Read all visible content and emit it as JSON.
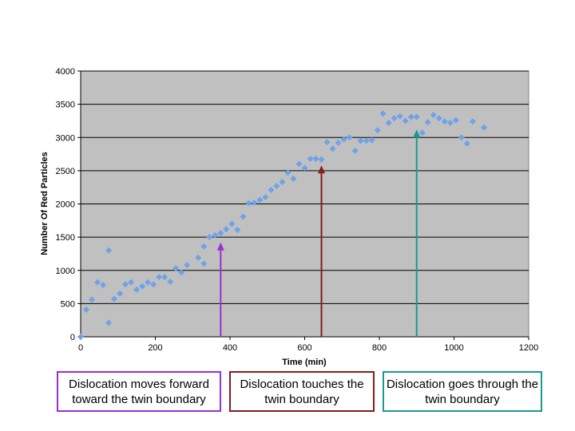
{
  "chart_data": {
    "type": "scatter",
    "title": "",
    "xlabel": "Time (min)",
    "ylabel": "Number Of Red  Particles",
    "xlim": [
      0,
      1200
    ],
    "ylim": [
      0,
      4000
    ],
    "xticks": [
      0,
      200,
      400,
      600,
      800,
      1000,
      1200
    ],
    "yticks": [
      0,
      500,
      1000,
      1500,
      2000,
      2500,
      3000,
      3500,
      4000
    ],
    "grid": "horizontal",
    "plot_background": "#c0c0c0",
    "marker_color": "#6fa2e8",
    "points": [
      [
        0,
        0
      ],
      [
        15,
        410
      ],
      [
        30,
        560
      ],
      [
        45,
        820
      ],
      [
        60,
        780
      ],
      [
        75,
        1300
      ],
      [
        75,
        210
      ],
      [
        90,
        570
      ],
      [
        105,
        650
      ],
      [
        120,
        790
      ],
      [
        135,
        820
      ],
      [
        150,
        710
      ],
      [
        165,
        760
      ],
      [
        180,
        820
      ],
      [
        195,
        790
      ],
      [
        210,
        900
      ],
      [
        225,
        900
      ],
      [
        240,
        830
      ],
      [
        255,
        1030
      ],
      [
        270,
        970
      ],
      [
        285,
        1080
      ],
      [
        315,
        1190
      ],
      [
        330,
        1100
      ],
      [
        330,
        1360
      ],
      [
        345,
        1500
      ],
      [
        360,
        1530
      ],
      [
        375,
        1560
      ],
      [
        390,
        1620
      ],
      [
        405,
        1700
      ],
      [
        420,
        1610
      ],
      [
        435,
        1810
      ],
      [
        450,
        2010
      ],
      [
        465,
        2020
      ],
      [
        480,
        2060
      ],
      [
        495,
        2100
      ],
      [
        510,
        2210
      ],
      [
        525,
        2270
      ],
      [
        540,
        2330
      ],
      [
        555,
        2470
      ],
      [
        570,
        2380
      ],
      [
        585,
        2600
      ],
      [
        600,
        2540
      ],
      [
        615,
        2680
      ],
      [
        630,
        2680
      ],
      [
        645,
        2670
      ],
      [
        660,
        2930
      ],
      [
        675,
        2830
      ],
      [
        690,
        2920
      ],
      [
        705,
        2970
      ],
      [
        720,
        3000
      ],
      [
        735,
        2800
      ],
      [
        750,
        2950
      ],
      [
        765,
        2950
      ],
      [
        780,
        2960
      ],
      [
        795,
        3110
      ],
      [
        810,
        3360
      ],
      [
        825,
        3220
      ],
      [
        840,
        3290
      ],
      [
        855,
        3320
      ],
      [
        870,
        3250
      ],
      [
        885,
        3310
      ],
      [
        900,
        3310
      ],
      [
        915,
        3070
      ],
      [
        930,
        3230
      ],
      [
        945,
        3340
      ],
      [
        960,
        3290
      ],
      [
        975,
        3240
      ],
      [
        990,
        3220
      ],
      [
        1005,
        3260
      ],
      [
        1020,
        3000
      ],
      [
        1035,
        2910
      ],
      [
        1050,
        3240
      ],
      [
        1080,
        3150
      ]
    ],
    "annotations": [
      {
        "x": 375,
        "y_end": 1420,
        "color": "#9a2fd2",
        "label": "Dislocation moves forward toward the twin boundary"
      },
      {
        "x": 645,
        "y_end": 2580,
        "color": "#8b1a1a",
        "label": "Dislocation touches the twin boundary"
      },
      {
        "x": 900,
        "y_end": 3120,
        "color": "#1a9a90",
        "label": "Dislocation goes through the twin boundary"
      }
    ]
  }
}
